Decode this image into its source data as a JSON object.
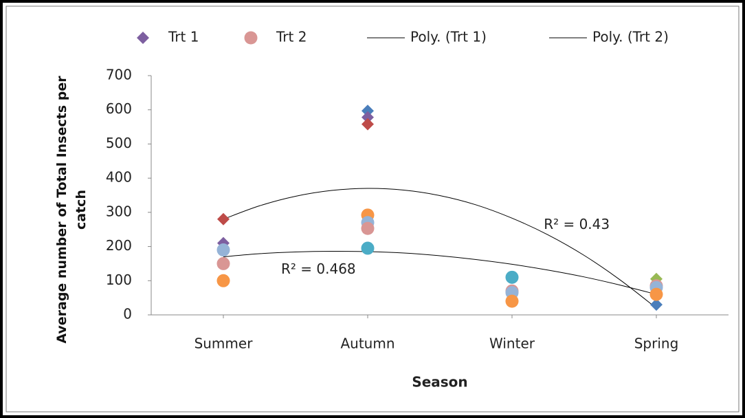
{
  "chart_data": {
    "type": "scatter",
    "ylabel": "Average number of  Total Insects per catch",
    "xlabel": "Season",
    "xlim": [
      0.5,
      4.5
    ],
    "xticks": [
      {
        "value": 1,
        "label": "Summer"
      },
      {
        "value": 2,
        "label": "Autumn"
      },
      {
        "value": 3,
        "label": "Winter"
      },
      {
        "value": 4,
        "label": "Spring"
      }
    ],
    "ylim": [
      0,
      700
    ],
    "yticks": [
      0,
      100,
      200,
      300,
      400,
      500,
      600,
      700
    ],
    "grid": false,
    "legend": "top",
    "series": [
      {
        "name": "Trt 1",
        "marker": "diamond",
        "color": "#7d5fa0",
        "x": [
          1,
          1,
          2,
          2,
          2,
          4,
          4
        ],
        "values": [
          280,
          210,
          597,
          578,
          558,
          105,
          30
        ],
        "point_colors": [
          "#be4b48",
          "#7d5fa0",
          "#4a7ebb",
          "#7d5fa0",
          "#be4b48",
          "#98b954",
          "#4a7ebb"
        ]
      },
      {
        "name": "Trt 2",
        "marker": "circle",
        "color": "#d99694",
        "x": [
          1,
          1,
          1,
          2,
          2,
          2,
          2,
          3,
          3,
          3,
          3,
          4,
          4,
          4
        ],
        "values": [
          190,
          150,
          100,
          292,
          270,
          253,
          195,
          110,
          70,
          65,
          40,
          85,
          80,
          60
        ],
        "point_colors": [
          "#95b3d7",
          "#d99694",
          "#f79646",
          "#f79646",
          "#95b3d7",
          "#d99694",
          "#4bacc6",
          "#4bacc6",
          "#d99694",
          "#95b3d7",
          "#f79646",
          "#d99694",
          "#95b3d7",
          "#f79646"
        ]
      }
    ],
    "trendlines": [
      {
        "name": "Poly. (Trt 1)",
        "color": "#000000",
        "x": [
          1,
          1.25,
          1.5,
          1.75,
          2,
          2.25,
          2.5,
          2.75,
          3,
          3.25,
          3.5,
          3.75,
          4
        ],
        "values": [
          280,
          319,
          347,
          364,
          370,
          365,
          349,
          322,
          283,
          234,
          174,
          102,
          20
        ]
      },
      {
        "name": "Poly. (Trt 2)",
        "color": "#000000",
        "x": [
          1,
          1.25,
          1.5,
          1.75,
          2,
          2.25,
          2.5,
          2.75,
          3,
          3.25,
          3.5,
          3.75,
          4
        ],
        "values": [
          170,
          179,
          184,
          186,
          185,
          181,
          173,
          162,
          148,
          131,
          111,
          87,
          60
        ]
      }
    ],
    "annotations": [
      {
        "text": "R² = 0.43",
        "x": 3.22,
        "y": 262
      },
      {
        "text": "R² = 0.468",
        "x": 1.4,
        "y": 132
      }
    ]
  }
}
